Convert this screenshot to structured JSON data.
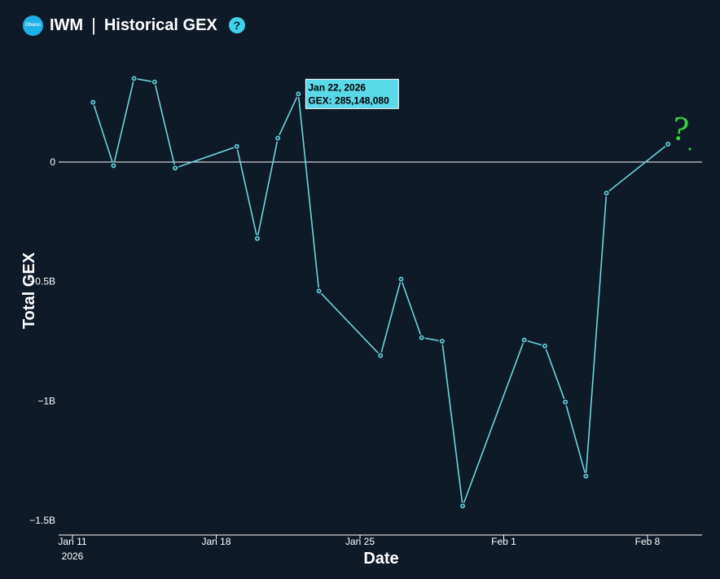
{
  "header": {
    "logo_text": "iShares",
    "ticker": "IWM",
    "separator": "|",
    "title": "Historical GEX",
    "help_icon": "question-circle-icon",
    "help_symbol": "?"
  },
  "colors": {
    "background": "#0f1a28",
    "line": "#6fd3dd",
    "marker_fill": "#5fc6d3",
    "tooltip_bg": "#5ad9e8",
    "annotation": "#35d43a",
    "logo": "#1fb0e6"
  },
  "chart_data": {
    "type": "line",
    "title": "IWM | Historical GEX",
    "xlabel": "Date",
    "ylabel": "Total GEX",
    "y_tick_labels": [
      "0",
      "−0.5B",
      "−1B",
      "−1.5B"
    ],
    "y_tick_values": [
      0,
      -500000000,
      -1000000000,
      -1500000000
    ],
    "x_tick_labels": [
      "Jan 11",
      "Jan 18",
      "Jan 25",
      "Feb 1",
      "Feb 8"
    ],
    "x_tick_sublabel": "2026",
    "x_tick_dates": [
      "2026-01-11",
      "2026-01-18",
      "2026-01-25",
      "2026-02-01",
      "2026-02-08"
    ],
    "xlim": [
      "2026-01-11",
      "2026-02-11"
    ],
    "ylim": [
      -1560000000,
      400000000
    ],
    "grid": false,
    "zero_line": true,
    "series": [
      {
        "dates": [
          "2026-01-12",
          "2026-01-13",
          "2026-01-14",
          "2026-01-15",
          "2026-01-16",
          "2026-01-19",
          "2026-01-20",
          "2026-01-21",
          "2026-01-22",
          "2026-01-23",
          "2026-01-26",
          "2026-01-27",
          "2026-01-28",
          "2026-01-29",
          "2026-01-30",
          "2026-02-02",
          "2026-02-03",
          "2026-02-04",
          "2026-02-05",
          "2026-02-06",
          "2026-02-09"
        ],
        "values": [
          250000000,
          -15000000,
          350000000,
          335000000,
          -25000000,
          65000000,
          -320000000,
          100000000,
          285148080,
          -540000000,
          -810000000,
          -490000000,
          -735000000,
          -750000000,
          -1440000000,
          -745000000,
          -770000000,
          -1005000000,
          -1315000000,
          -130000000,
          75000000
        ]
      }
    ],
    "tooltip": {
      "date_text": "Jan 22, 2026",
      "value_text": "GEX: 285,148,080",
      "point_index": 8
    },
    "annotation": "?"
  }
}
